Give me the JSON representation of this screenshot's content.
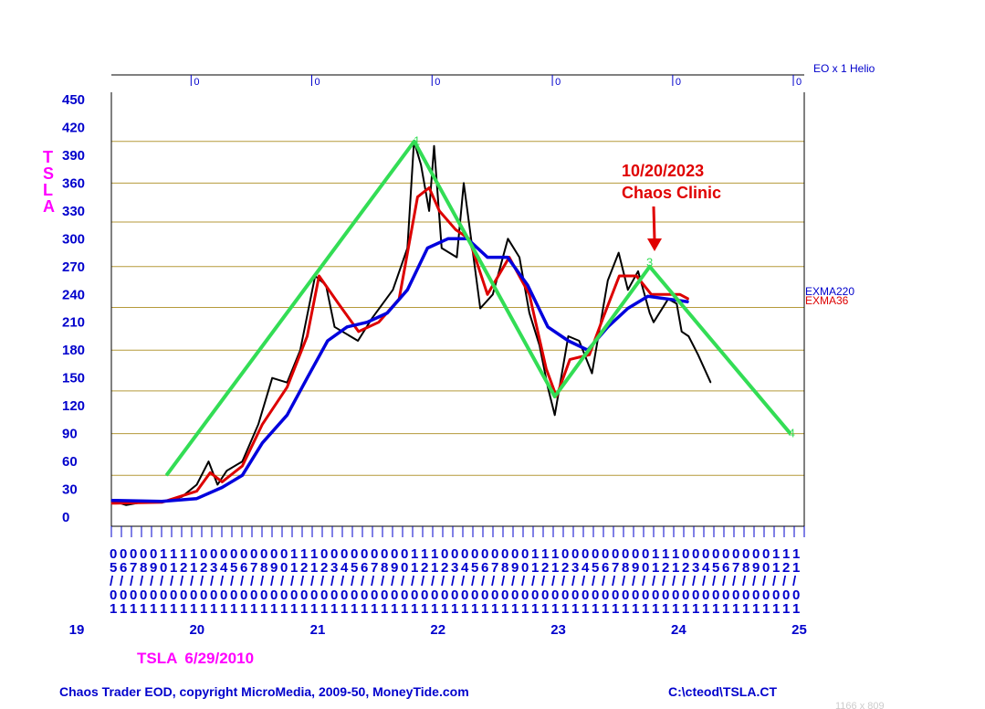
{
  "chart_data": {
    "type": "line",
    "title": "TSLA",
    "subtitle": "6/29/2010",
    "ylabel": "TSLA",
    "ylim": [
      0,
      450
    ],
    "y_ticks": [
      "450",
      "420",
      "390",
      "360",
      "330",
      "300",
      "270",
      "240",
      "210",
      "180",
      "150",
      "120",
      "90",
      "60",
      "30",
      "0"
    ],
    "x_range": [
      "2019-05-01",
      "2025-01-31"
    ],
    "year_labels": [
      "19",
      "20",
      "21",
      "22",
      "23",
      "24",
      "25"
    ],
    "month_rows": [
      "000001111000000000111000000000111000000000111000000000111000000000111",
      "567890121234567890121234567890121234567890121234567890121234567890121",
      "/////////////////////////////////////////////////////////////////////",
      "000000000000000000000000000000000000000000000000000000000000000000000",
      "111111111111111111111111111111111111111111111111111111111111111111111"
    ],
    "top_ticks": [
      "0",
      "0",
      "0",
      "0",
      "0",
      "0"
    ],
    "top_right_label": "EO x 1 Helio",
    "gridlines": [
      405,
      360,
      318,
      270,
      226,
      180,
      136,
      90,
      45
    ],
    "series": [
      {
        "name": "TSLA",
        "color": "#000000",
        "x": [
          "2019-05-01",
          "2019-06-15",
          "2019-08-01",
          "2019-10-01",
          "2019-12-01",
          "2020-01-15",
          "2020-02-20",
          "2020-03-18",
          "2020-04-15",
          "2020-06-01",
          "2020-07-20",
          "2020-08-31",
          "2020-10-15",
          "2020-11-24",
          "2021-01-08",
          "2021-02-10",
          "2021-03-08",
          "2021-05-18",
          "2021-07-01",
          "2021-09-01",
          "2021-10-15",
          "2021-11-04",
          "2021-11-25",
          "2021-12-20",
          "2022-01-04",
          "2022-01-27",
          "2022-03-14",
          "2022-04-04",
          "2022-05-24",
          "2022-07-01",
          "2022-08-16",
          "2022-09-20",
          "2022-10-20",
          "2022-11-20",
          "2022-12-15",
          "2023-01-05",
          "2023-02-15",
          "2023-03-20",
          "2023-04-28",
          "2023-06-15",
          "2023-07-18",
          "2023-08-15",
          "2023-09-15",
          "2023-10-20",
          "2023-11-01",
          "2023-12-15",
          "2024-01-10",
          "2024-01-25",
          "2024-02-15",
          "2024-03-15",
          "2024-04-22"
        ],
        "y": [
          18,
          13,
          16,
          16,
          22,
          35,
          60,
          35,
          50,
          60,
          100,
          150,
          145,
          180,
          260,
          250,
          205,
          190,
          215,
          245,
          290,
          405,
          380,
          330,
          400,
          290,
          280,
          360,
          225,
          240,
          300,
          280,
          220,
          185,
          140,
          110,
          195,
          190,
          155,
          255,
          285,
          245,
          265,
          220,
          210,
          235,
          230,
          200,
          195,
          175,
          145
        ]
      },
      {
        "name": "EXMA36",
        "color": "#dd0000",
        "x": [
          "2019-05-01",
          "2019-10-01",
          "2020-01-15",
          "2020-02-25",
          "2020-04-01",
          "2020-06-01",
          "2020-08-01",
          "2020-10-15",
          "2020-12-15",
          "2021-01-20",
          "2021-03-20",
          "2021-05-20",
          "2021-07-20",
          "2021-09-20",
          "2021-11-15",
          "2021-12-20",
          "2022-01-20",
          "2022-03-10",
          "2022-04-20",
          "2022-06-15",
          "2022-08-20",
          "2022-10-20",
          "2022-12-10",
          "2023-01-10",
          "2023-02-20",
          "2023-04-20",
          "2023-06-01",
          "2023-07-20",
          "2023-09-10",
          "2023-10-25",
          "2023-12-15",
          "2024-01-20",
          "2024-02-15"
        ],
        "y": [
          15,
          16,
          28,
          48,
          38,
          55,
          100,
          140,
          195,
          260,
          230,
          200,
          210,
          235,
          345,
          355,
          330,
          310,
          300,
          240,
          280,
          240,
          160,
          130,
          170,
          175,
          215,
          260,
          260,
          240,
          240,
          240,
          235
        ]
      },
      {
        "name": "EXMA220",
        "color": "#0000dd",
        "x": [
          "2019-05-01",
          "2019-10-01",
          "2020-01-15",
          "2020-04-01",
          "2020-06-01",
          "2020-08-01",
          "2020-10-15",
          "2020-12-15",
          "2021-02-15",
          "2021-04-15",
          "2021-06-15",
          "2021-08-15",
          "2021-10-15",
          "2021-12-15",
          "2022-02-15",
          "2022-04-15",
          "2022-06-15",
          "2022-08-15",
          "2022-10-15",
          "2022-12-15",
          "2023-02-15",
          "2023-04-15",
          "2023-06-15",
          "2023-08-15",
          "2023-10-15",
          "2023-12-15",
          "2024-02-15"
        ],
        "y": [
          18,
          17,
          20,
          32,
          45,
          80,
          110,
          150,
          190,
          205,
          210,
          220,
          245,
          290,
          300,
          300,
          280,
          280,
          250,
          205,
          190,
          180,
          205,
          225,
          238,
          235,
          232
        ]
      },
      {
        "name": "Projection",
        "color": "#33dd55",
        "x": [
          "2019-10-15",
          "2021-11-05",
          "2023-01-05",
          "2023-10-20",
          "2024-12-20"
        ],
        "y": [
          45,
          405,
          130,
          270,
          90
        ]
      }
    ],
    "legend": [
      "EXMA220",
      "EXMA36"
    ]
  },
  "wave_labels": [
    {
      "text": "1",
      "x": "2021-11-25",
      "y": 405
    },
    {
      "text": "3",
      "x": "2023-11-01",
      "y": 274
    },
    {
      "text": "4",
      "x": "2025-01-05",
      "y": 90
    }
  ],
  "annotation": {
    "line1": "10/20/2023",
    "line2": "Chaos Clinic"
  },
  "footer": {
    "left": "Chaos Trader EOD, copyright MicroMedia, 2009-50, MoneyTide.com",
    "right": "C:\\cteod\\TSLA.CT",
    "size": "1166 x 809"
  },
  "colors": {
    "axis": "#0000cc",
    "grid": "#b59a3a",
    "price": "#000000",
    "exma36": "#dd0000",
    "exma220": "#0000dd",
    "projection": "#33dd55",
    "accent": "#ff00ff",
    "annotation": "#e00000"
  }
}
